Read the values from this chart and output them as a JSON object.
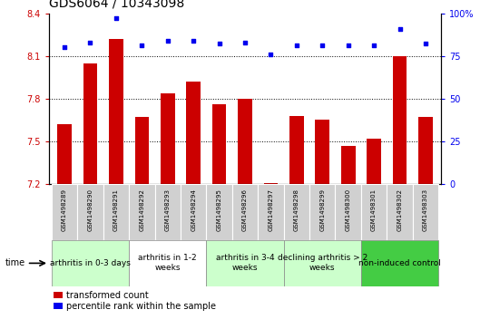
{
  "title": "GDS6064 / 10343098",
  "samples": [
    "GSM1498289",
    "GSM1498290",
    "GSM1498291",
    "GSM1498292",
    "GSM1498293",
    "GSM1498294",
    "GSM1498295",
    "GSM1498296",
    "GSM1498297",
    "GSM1498298",
    "GSM1498299",
    "GSM1498300",
    "GSM1498301",
    "GSM1498302",
    "GSM1498303"
  ],
  "red_values": [
    7.62,
    8.05,
    8.22,
    7.67,
    7.84,
    7.92,
    7.76,
    7.8,
    7.21,
    7.68,
    7.65,
    7.47,
    7.52,
    8.1,
    7.67
  ],
  "blue_values": [
    80,
    83,
    97,
    81,
    84,
    84,
    82,
    83,
    76,
    81,
    81,
    81,
    81,
    91,
    82
  ],
  "ylim_left": [
    7.2,
    8.4
  ],
  "ylim_right": [
    0,
    100
  ],
  "yticks_left": [
    7.2,
    7.5,
    7.8,
    8.1,
    8.4
  ],
  "yticks_right": [
    0,
    25,
    50,
    75,
    100
  ],
  "grid_values": [
    7.5,
    7.8,
    8.1
  ],
  "bar_color": "#cc0000",
  "dot_color": "#0000ee",
  "groups": [
    {
      "label": "arthritis in 0-3 days",
      "start": 0,
      "end": 3,
      "color": "#ccffcc"
    },
    {
      "label": "arthritis in 1-2\nweeks",
      "start": 3,
      "end": 6,
      "color": "#ffffff"
    },
    {
      "label": "arthritis in 3-4\nweeks",
      "start": 6,
      "end": 9,
      "color": "#ccffcc"
    },
    {
      "label": "declining arthritis > 2\nweeks",
      "start": 9,
      "end": 12,
      "color": "#ccffcc"
    },
    {
      "label": "non-induced control",
      "start": 12,
      "end": 15,
      "color": "#44cc44"
    }
  ],
  "legend_red": "transformed count",
  "legend_blue": "percentile rank within the sample",
  "tick_fontsize": 7,
  "sample_fontsize": 5,
  "group_fontsize": 6.5,
  "title_fontsize": 10
}
